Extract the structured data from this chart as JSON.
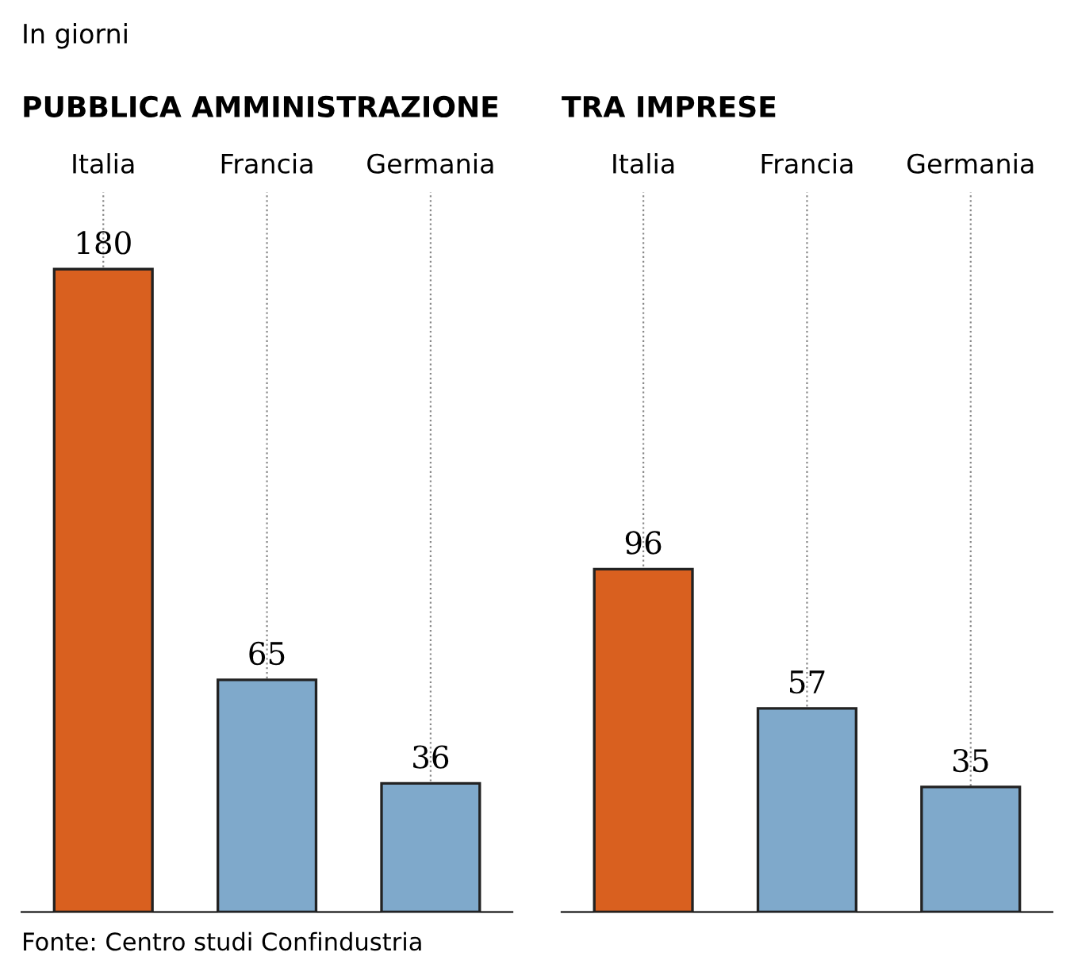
{
  "chart_data": [
    {
      "type": "bar",
      "subtitle": "In giorni",
      "title": "PUBBLICA AMMINISTRAZIONE",
      "categories": [
        "Italia",
        "Francia",
        "Germania"
      ],
      "values": [
        180,
        65,
        36
      ],
      "colors": [
        "#d9601f",
        "#7fa9cb",
        "#7fa9cb"
      ],
      "data_labels": true,
      "grid": "x",
      "tick_labels": "x"
    },
    {
      "type": "bar",
      "title": "TRA IMPRESE",
      "categories": [
        "Italia",
        "Francia",
        "Germania"
      ],
      "values": [
        96,
        57,
        35
      ],
      "colors": [
        "#d9601f",
        "#7fa9cb",
        "#7fa9cb"
      ],
      "data_labels": true,
      "grid": "x",
      "tick_labels": "x",
      "annotations": [
        "Fonte: Centro studi Confindustria"
      ]
    }
  ]
}
